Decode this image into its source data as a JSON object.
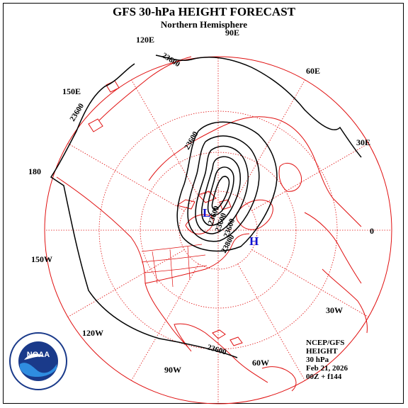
{
  "title": "GFS 30-hPa HEIGHT FORECAST",
  "subtitle": "Northern Hemisphere",
  "longitude_labels": [
    "90E",
    "60E",
    "30E",
    "0",
    "30W",
    "60W",
    "90W",
    "120W",
    "150W",
    "180",
    "150E",
    "120E"
  ],
  "contour_labels": [
    "23600",
    "23600",
    "23600",
    "23600",
    "23600",
    "23600",
    "23800",
    "23600"
  ],
  "pressure_centers": {
    "low": "L",
    "high": "H"
  },
  "info_lines": [
    "NCEP/GFS",
    "HEIGHT",
    "30 hPa",
    "Feb 21, 2026",
    "00Z + f144"
  ],
  "logo_text": "NOAA",
  "colors": {
    "coastline": "#e01010",
    "contour": "#000000",
    "graticule": "#e01010",
    "center_marker": "#1010d0"
  }
}
